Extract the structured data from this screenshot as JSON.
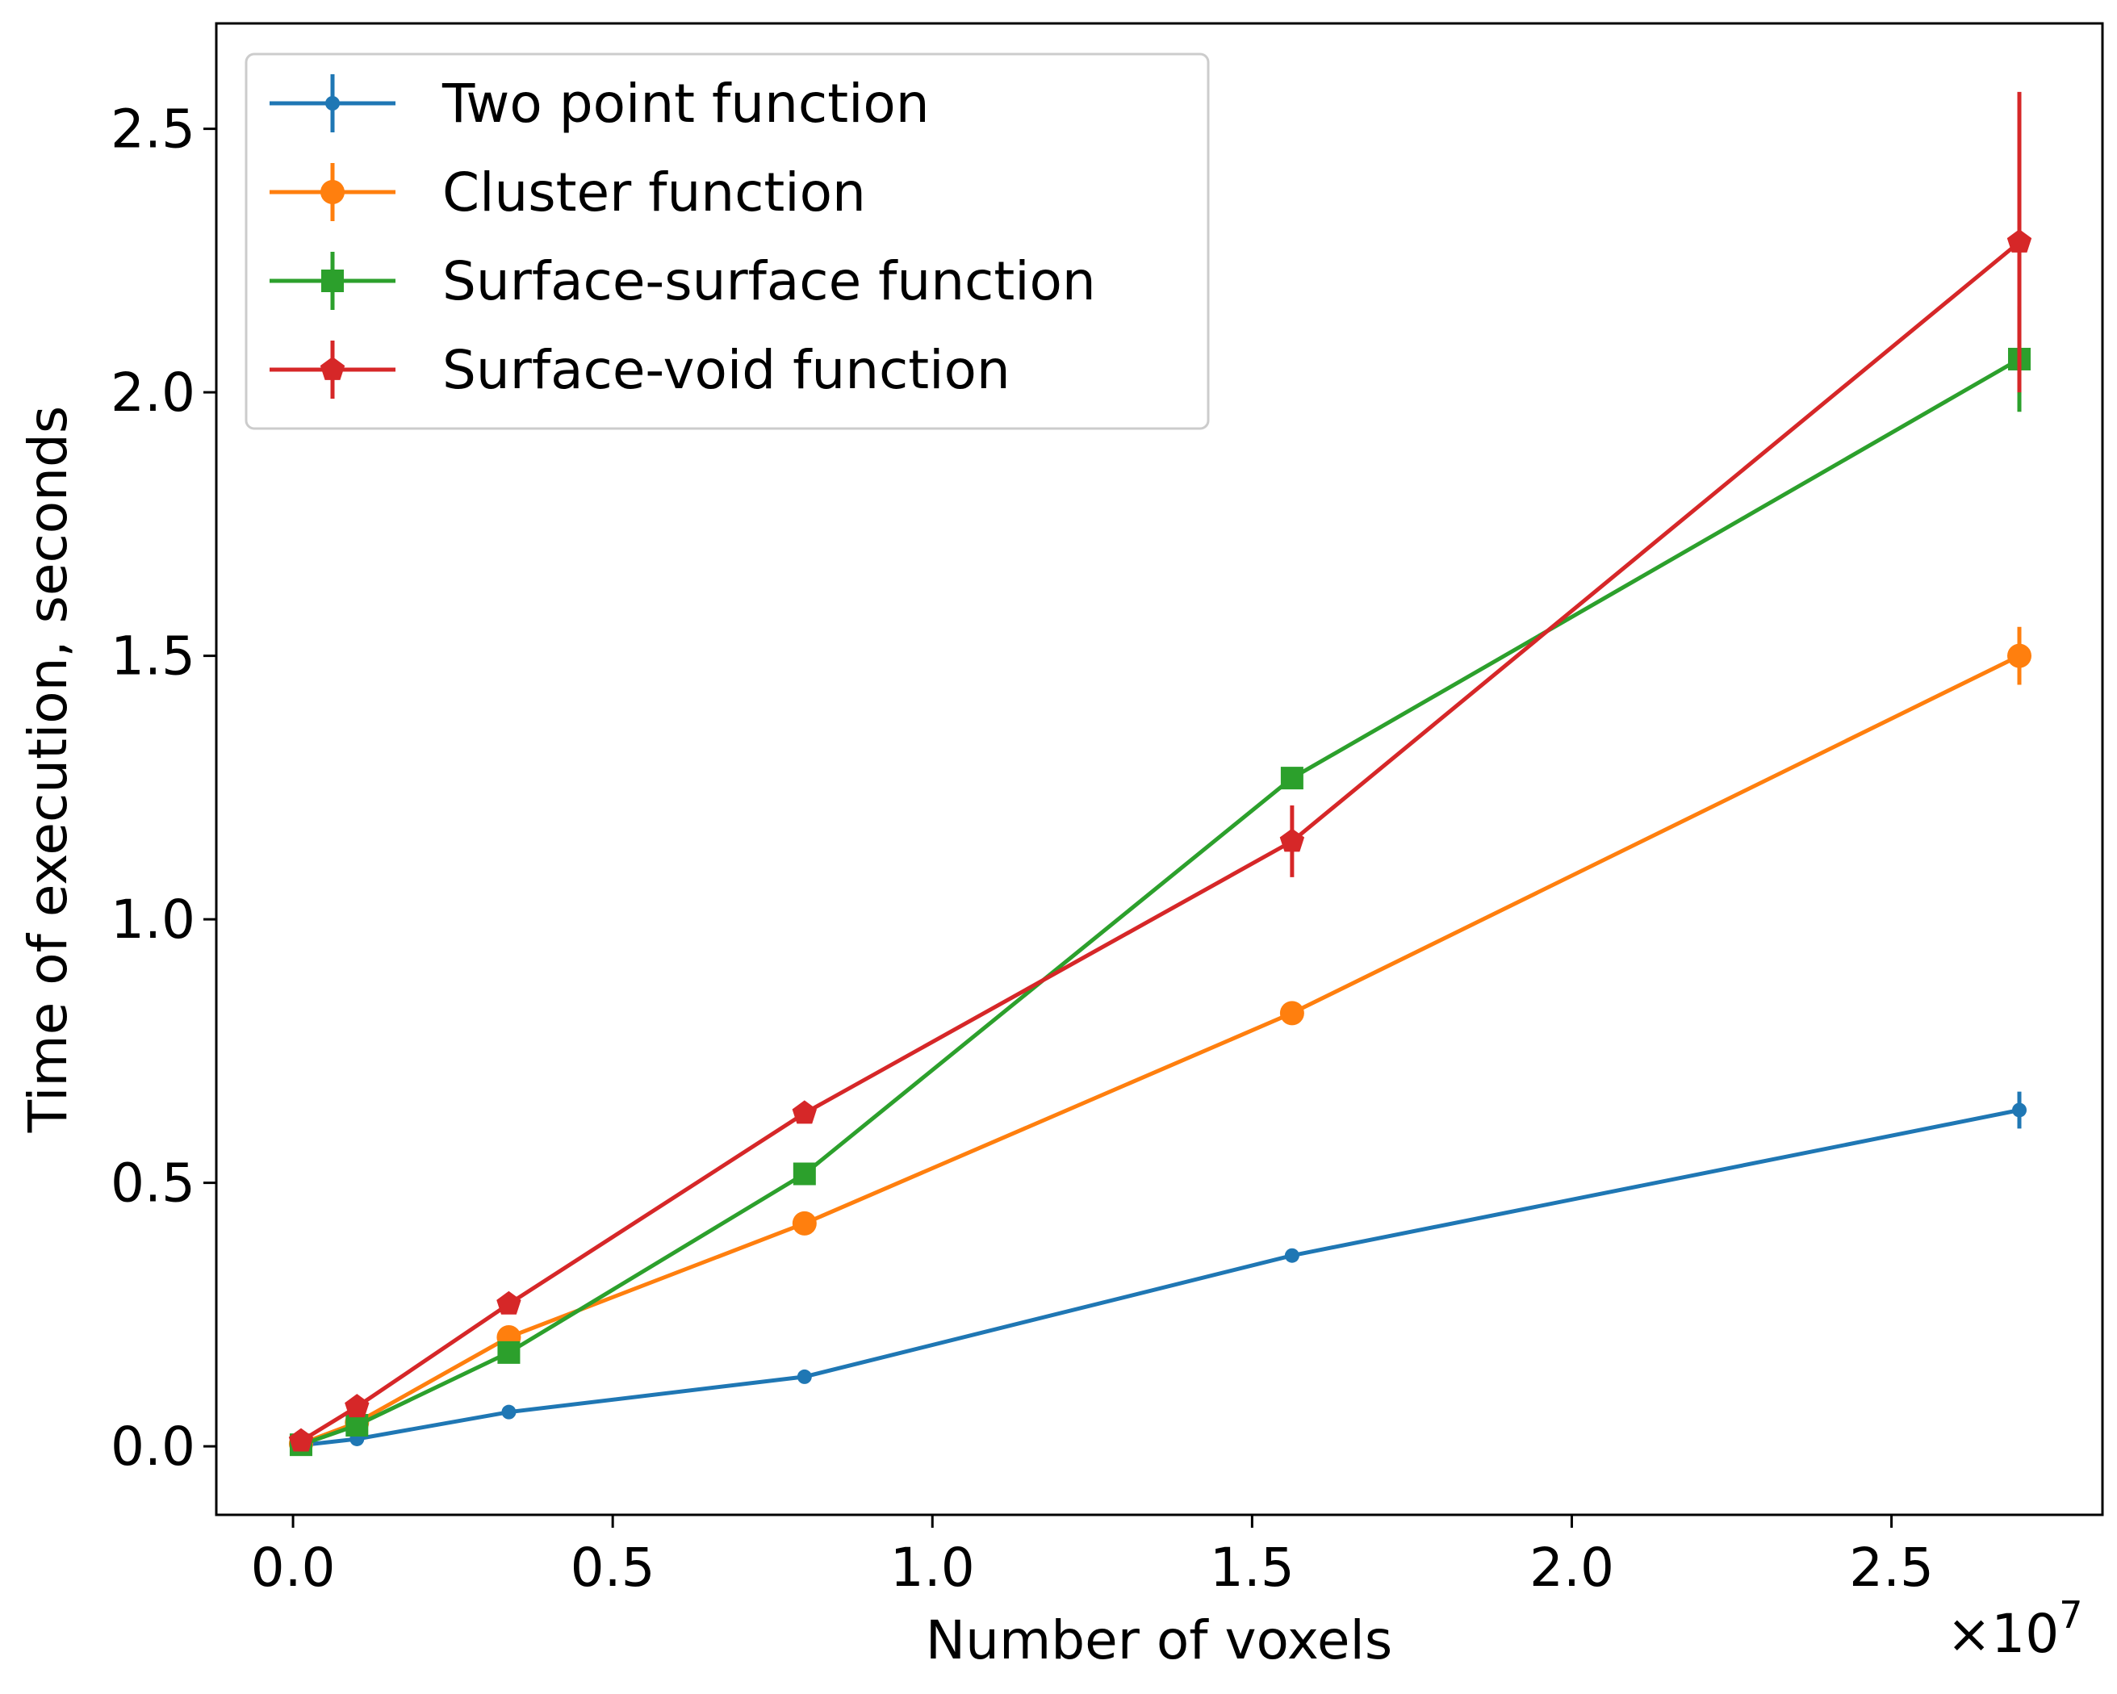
{
  "chart_data": {
    "type": "line",
    "title": "",
    "xlabel": "Number of voxels",
    "ylabel": "Time of execution, seconds",
    "x_offset_label": "×10",
    "x_offset_exponent": "7",
    "xlim": [
      -0.12,
      2.83
    ],
    "ylim": [
      -0.13,
      2.7
    ],
    "x_ticks": [
      0.0,
      0.5,
      1.0,
      1.5,
      2.0,
      2.5
    ],
    "x_tick_labels": [
      "0.0",
      "0.5",
      "1.0",
      "1.5",
      "2.0",
      "2.5"
    ],
    "y_ticks": [
      0.0,
      0.5,
      1.0,
      1.5,
      2.0,
      2.5
    ],
    "y_tick_labels": [
      "0.0",
      "0.5",
      "1.0",
      "1.5",
      "2.0",
      "2.5"
    ],
    "x_scale_note": "x values in units of 1e7 voxels",
    "grid": false,
    "legend_position": "top-left",
    "x": [
      0.0125,
      0.1,
      0.3375,
      0.8,
      1.5625,
      2.7
    ],
    "series": [
      {
        "name": "Two point function",
        "color": "#1f77b4",
        "marker": "point",
        "y": [
          0.002,
          0.014,
          0.065,
          0.132,
          0.362,
          0.638
        ],
        "yerr": [
          0.001,
          0.002,
          0.004,
          0.005,
          0.008,
          0.035
        ]
      },
      {
        "name": "Cluster function",
        "color": "#ff7f0e",
        "marker": "circle",
        "y": [
          0.005,
          0.045,
          0.207,
          0.423,
          0.822,
          1.5
        ],
        "yerr": [
          0.001,
          0.003,
          0.006,
          0.008,
          0.01,
          0.055
        ]
      },
      {
        "name": "Surface-surface function",
        "color": "#2ca02c",
        "marker": "square",
        "y": [
          0.003,
          0.04,
          0.178,
          0.517,
          1.268,
          2.063
        ],
        "yerr": [
          0.001,
          0.003,
          0.006,
          0.015,
          0.02,
          0.1
        ]
      },
      {
        "name": "Surface-void function",
        "color": "#d62728",
        "marker": "pentagon",
        "y": [
          0.01,
          0.075,
          0.27,
          0.632,
          1.148,
          2.285
        ],
        "yerr": [
          0.002,
          0.004,
          0.008,
          0.012,
          0.068,
          0.285
        ]
      }
    ]
  }
}
